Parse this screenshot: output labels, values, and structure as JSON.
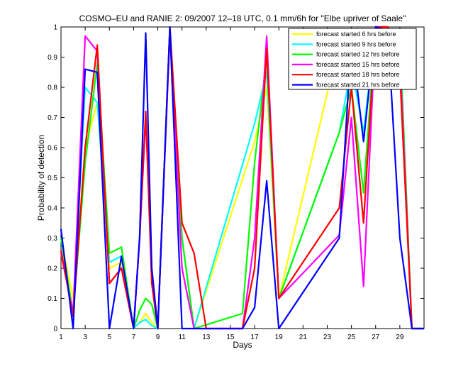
{
  "chart_data": {
    "type": "line",
    "title": "COSMO–EU and RANIE 2: 09/2007 12–18 UTC, 0.1 mm/6h for \"Elbe upriver of Saale\"",
    "xlabel": "Days",
    "ylabel": "Probability of detection",
    "xlim": [
      1,
      31
    ],
    "ylim": [
      0,
      1
    ],
    "xticks": [
      1,
      3,
      5,
      7,
      9,
      11,
      13,
      15,
      17,
      19,
      21,
      23,
      25,
      27,
      29
    ],
    "yticks": [
      0,
      0.1,
      0.2,
      0.3,
      0.4,
      0.5,
      0.6,
      0.7,
      0.8,
      0.9,
      1
    ],
    "ytick_labels": [
      "0",
      "0.1",
      "0.2",
      "0.3",
      "0.4",
      "0.5",
      "0.6",
      "0.7",
      "0.8",
      "0.9",
      "1"
    ],
    "legend_position": "top-right",
    "series": [
      {
        "name": "forecast started 6 hrs before",
        "color": "#ffff00",
        "points": [
          [
            1,
            0.3
          ],
          [
            2,
            0.1
          ],
          [
            3,
            0.6
          ],
          [
            4,
            0.75
          ],
          [
            5,
            0.2
          ],
          [
            6,
            0.22
          ],
          [
            7,
            0.0
          ],
          [
            7.5,
            0.02
          ],
          [
            8,
            0.05
          ],
          [
            8.5,
            0.02
          ],
          [
            9,
            0.0
          ],
          [
            10,
            1.0
          ],
          [
            11,
            0.3
          ],
          [
            12,
            0.0
          ],
          [
            17,
            0.62
          ],
          [
            18,
            0.8
          ],
          [
            19,
            0.1
          ],
          [
            24,
            0.95
          ],
          [
            25,
            0.85
          ],
          [
            26,
            0.9
          ],
          [
            27,
            1.0
          ],
          [
            28,
            0.99
          ],
          [
            29,
            0.9
          ],
          [
            30,
            0.0
          ],
          [
            31,
            0.0
          ]
        ]
      },
      {
        "name": "forecast started 9 hrs before",
        "color": "#00ffff",
        "points": [
          [
            1,
            0.3
          ],
          [
            2,
            0.05
          ],
          [
            3,
            0.8
          ],
          [
            4,
            0.75
          ],
          [
            5,
            0.22
          ],
          [
            6,
            0.24
          ],
          [
            7,
            0.0
          ],
          [
            7.5,
            0.02
          ],
          [
            8,
            0.03
          ],
          [
            8.5,
            0.01
          ],
          [
            9,
            0.0
          ],
          [
            10,
            1.0
          ],
          [
            11,
            0.3
          ],
          [
            12,
            0.0
          ],
          [
            17,
            0.68
          ],
          [
            18,
            0.85
          ],
          [
            19,
            0.1
          ],
          [
            24,
            0.65
          ],
          [
            25,
            0.87
          ],
          [
            26,
            0.65
          ],
          [
            27,
            1.0
          ],
          [
            28,
            1.0
          ],
          [
            29,
            0.95
          ],
          [
            30,
            0.0
          ],
          [
            31,
            0.0
          ]
        ]
      },
      {
        "name": "forecast started 12 hrs before",
        "color": "#00ff00",
        "points": [
          [
            1,
            0.3
          ],
          [
            2,
            0.05
          ],
          [
            3,
            0.55
          ],
          [
            4,
            0.88
          ],
          [
            5,
            0.25
          ],
          [
            6,
            0.27
          ],
          [
            7,
            0.0
          ],
          [
            7.5,
            0.06
          ],
          [
            8,
            0.1
          ],
          [
            8.5,
            0.08
          ],
          [
            9,
            0.0
          ],
          [
            10,
            1.0
          ],
          [
            11,
            0.3
          ],
          [
            12,
            0.0
          ],
          [
            16,
            0.05
          ],
          [
            17,
            0.55
          ],
          [
            18,
            0.9
          ],
          [
            19,
            0.1
          ],
          [
            24,
            0.65
          ],
          [
            25,
            0.8
          ],
          [
            26,
            0.45
          ],
          [
            27,
            1.0
          ],
          [
            28,
            0.99
          ],
          [
            29,
            0.97
          ],
          [
            30,
            0.0
          ],
          [
            31,
            0.0
          ]
        ]
      },
      {
        "name": "forecast started 15 hrs before",
        "color": "#ff00ff",
        "points": [
          [
            1,
            0.25
          ],
          [
            2,
            0.05
          ],
          [
            3,
            0.97
          ],
          [
            4,
            0.92
          ],
          [
            5,
            0.15
          ],
          [
            6,
            0.2
          ],
          [
            7,
            0.0
          ],
          [
            7.5,
            0.3
          ],
          [
            8,
            0.7
          ],
          [
            8.5,
            0.2
          ],
          [
            9,
            0.0
          ],
          [
            10,
            0.98
          ],
          [
            11,
            0.2
          ],
          [
            12,
            0.0
          ],
          [
            16,
            0.0
          ],
          [
            17,
            0.3
          ],
          [
            18,
            0.97
          ],
          [
            19,
            0.1
          ],
          [
            24,
            0.31
          ],
          [
            25,
            0.7
          ],
          [
            26,
            0.14
          ],
          [
            27,
            1.0
          ],
          [
            28,
            1.0
          ],
          [
            29,
            0.9
          ],
          [
            30,
            0.0
          ],
          [
            31,
            0.0
          ]
        ]
      },
      {
        "name": "forecast started 18 hrs before",
        "color": "#ff0000",
        "points": [
          [
            1,
            0.26
          ],
          [
            2,
            0.04
          ],
          [
            3,
            0.6
          ],
          [
            4,
            0.94
          ],
          [
            5,
            0.15
          ],
          [
            6,
            0.2
          ],
          [
            7,
            0.0
          ],
          [
            7.5,
            0.3
          ],
          [
            8,
            0.72
          ],
          [
            8.5,
            0.15
          ],
          [
            9,
            0.0
          ],
          [
            10,
            1.0
          ],
          [
            11,
            0.35
          ],
          [
            12,
            0.25
          ],
          [
            13,
            0.0
          ],
          [
            16,
            0.0
          ],
          [
            17,
            0.2
          ],
          [
            18,
            0.93
          ],
          [
            19,
            0.1
          ],
          [
            24,
            0.4
          ],
          [
            25,
            0.8
          ],
          [
            26,
            0.35
          ],
          [
            27,
            1.0
          ],
          [
            28,
            1.0
          ],
          [
            29,
            0.85
          ],
          [
            30,
            0.0
          ],
          [
            31,
            0.0
          ]
        ]
      },
      {
        "name": "forecast started 21 hrs before",
        "color": "#0000ff",
        "points": [
          [
            1,
            0.33
          ],
          [
            2,
            0.0
          ],
          [
            3,
            0.86
          ],
          [
            4,
            0.85
          ],
          [
            5,
            0.0
          ],
          [
            6,
            0.24
          ],
          [
            7,
            0.0
          ],
          [
            7.5,
            0.3
          ],
          [
            8,
            0.98
          ],
          [
            8.5,
            0.2
          ],
          [
            9,
            0.0
          ],
          [
            10,
            1.0
          ],
          [
            11,
            0.0
          ],
          [
            12,
            0.0
          ],
          [
            16,
            0.0
          ],
          [
            17,
            0.07
          ],
          [
            18,
            0.49
          ],
          [
            19,
            0.0
          ],
          [
            24,
            0.3
          ],
          [
            25,
            0.96
          ],
          [
            26,
            0.62
          ],
          [
            27,
            1.0
          ],
          [
            28,
            0.99
          ],
          [
            29,
            0.3
          ],
          [
            30,
            0.0
          ],
          [
            31,
            0.0
          ]
        ]
      }
    ]
  }
}
